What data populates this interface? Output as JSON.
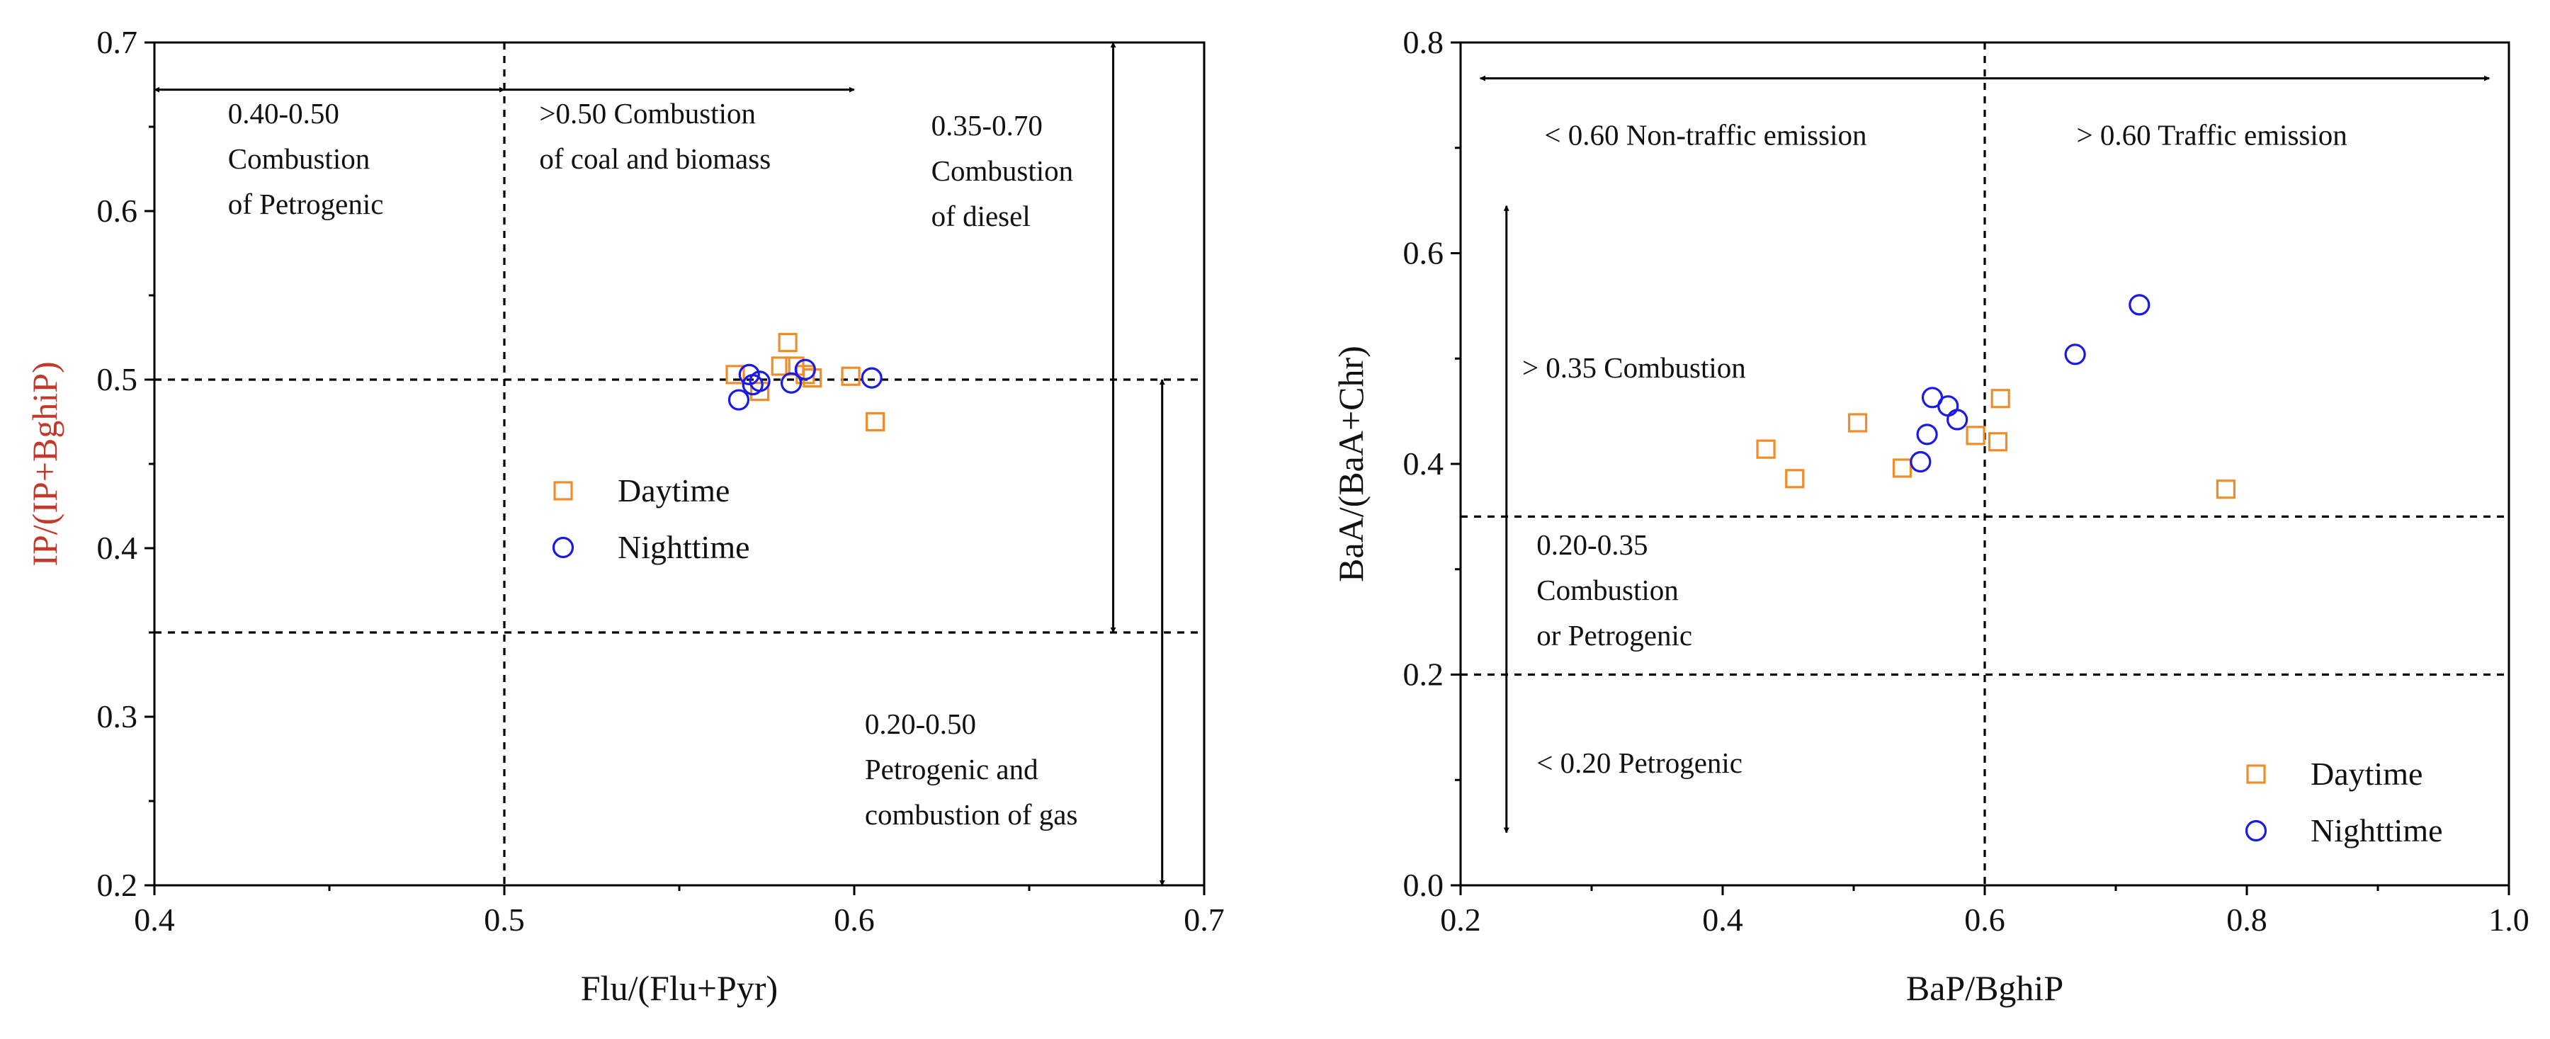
{
  "chart_data": [
    {
      "id": "left",
      "type": "scatter",
      "xlabel": "Flu/(Flu+Pyr)",
      "ylabel": "IP/(IP+BghiP)",
      "xlim": [
        0.4,
        0.7
      ],
      "ylim": [
        0.2,
        0.7
      ],
      "xticks": [
        "0.4",
        "0.5",
        "0.6",
        "0.7"
      ],
      "yticks": [
        "0.2",
        "0.3",
        "0.4",
        "0.5",
        "0.6",
        "0.7"
      ],
      "legend_position": "center",
      "series": [
        {
          "name": "Daytime",
          "marker": "square",
          "color": "#F28C28",
          "points": [
            [
              0.566,
              0.503
            ],
            [
              0.573,
              0.493
            ],
            [
              0.579,
              0.508
            ],
            [
              0.581,
              0.522
            ],
            [
              0.583,
              0.508
            ],
            [
              0.586,
              0.503
            ],
            [
              0.588,
              0.501
            ],
            [
              0.599,
              0.502
            ],
            [
              0.606,
              0.475
            ]
          ]
        },
        {
          "name": "Nighttime",
          "marker": "circle",
          "color": "#1A1AE6",
          "points": [
            [
              0.567,
              0.488
            ],
            [
              0.57,
              0.503
            ],
            [
              0.571,
              0.497
            ],
            [
              0.573,
              0.499
            ],
            [
              0.582,
              0.498
            ],
            [
              0.586,
              0.506
            ],
            [
              0.605,
              0.501
            ]
          ]
        }
      ],
      "reference_lines": [
        {
          "orientation": "vertical",
          "value": 0.5
        },
        {
          "orientation": "horizontal",
          "value": 0.5
        },
        {
          "orientation": "horizontal",
          "value": 0.35
        }
      ],
      "range_arrows": [
        {
          "orientation": "horizontal",
          "y": 0.672,
          "from": 0.4,
          "to": 0.5,
          "heads": "both"
        },
        {
          "orientation": "horizontal",
          "y": 0.672,
          "from": 0.5,
          "to": 0.6,
          "heads": "end"
        },
        {
          "orientation": "vertical",
          "x": 0.674,
          "from": 0.35,
          "to": 0.7,
          "heads": "both"
        },
        {
          "orientation": "vertical",
          "x": 0.688,
          "from": 0.2,
          "to": 0.5,
          "heads": "both"
        }
      ],
      "annotations": [
        {
          "lines": [
            "0.40-0.50",
            "Combustion",
            "of Petrogenic"
          ],
          "x": 0.421,
          "y": 0.652
        },
        {
          "lines": [
            ">0.50 Combustion",
            "of coal and biomass"
          ],
          "x": 0.51,
          "y": 0.652
        },
        {
          "lines": [
            "0.35-0.70",
            "Combustion",
            "of diesel"
          ],
          "x": 0.622,
          "y": 0.645
        },
        {
          "lines": [
            "0.20-0.50",
            "Petrogenic and",
            "combustion of gas"
          ],
          "x": 0.603,
          "y": 0.29
        }
      ]
    },
    {
      "id": "right",
      "type": "scatter",
      "xlabel": "BaP/BghiP",
      "ylabel": "BaA/(BaA+Chr)",
      "xlim": [
        0.2,
        1.0
      ],
      "ylim": [
        0.0,
        0.8
      ],
      "xticks": [
        "0.2",
        "0.4",
        "0.6",
        "0.8",
        "1.0"
      ],
      "yticks": [
        "0.0",
        "0.2",
        "0.4",
        "0.6",
        "0.8"
      ],
      "legend_position": "bottom-right",
      "series": [
        {
          "name": "Daytime",
          "marker": "square",
          "color": "#F28C28",
          "points": [
            [
              0.433,
              0.414
            ],
            [
              0.455,
              0.386
            ],
            [
              0.503,
              0.439
            ],
            [
              0.537,
              0.396
            ],
            [
              0.593,
              0.427
            ],
            [
              0.61,
              0.421
            ],
            [
              0.612,
              0.462
            ],
            [
              0.784,
              0.376
            ]
          ]
        },
        {
          "name": "Nighttime",
          "marker": "circle",
          "color": "#1A1AE6",
          "points": [
            [
              0.551,
              0.402
            ],
            [
              0.556,
              0.428
            ],
            [
              0.56,
              0.463
            ],
            [
              0.572,
              0.455
            ],
            [
              0.579,
              0.442
            ],
            [
              0.669,
              0.504
            ],
            [
              0.718,
              0.551
            ]
          ]
        }
      ],
      "reference_lines": [
        {
          "orientation": "vertical",
          "value": 0.6
        },
        {
          "orientation": "horizontal",
          "value": 0.35
        },
        {
          "orientation": "horizontal",
          "value": 0.2
        }
      ],
      "range_arrows": [
        {
          "orientation": "horizontal",
          "y": 0.766,
          "from": 0.215,
          "to": 0.985,
          "heads": "both"
        },
        {
          "orientation": "vertical",
          "x": 0.235,
          "from": 0.05,
          "to": 0.645,
          "heads": "both"
        }
      ],
      "annotations": [
        {
          "lines": [
            "< 0.60 Non-traffic emission"
          ],
          "x": 0.264,
          "y": 0.703
        },
        {
          "lines": [
            "> 0.60 Traffic emission"
          ],
          "x": 0.67,
          "y": 0.703
        },
        {
          "lines": [
            "> 0.35 Combustion"
          ],
          "x": 0.247,
          "y": 0.482
        },
        {
          "lines": [
            "0.20-0.35",
            "Combustion",
            "or Petrogenic"
          ],
          "x": 0.258,
          "y": 0.314
        },
        {
          "lines": [
            "< 0.20 Petrogenic"
          ],
          "x": 0.258,
          "y": 0.107
        }
      ]
    }
  ]
}
